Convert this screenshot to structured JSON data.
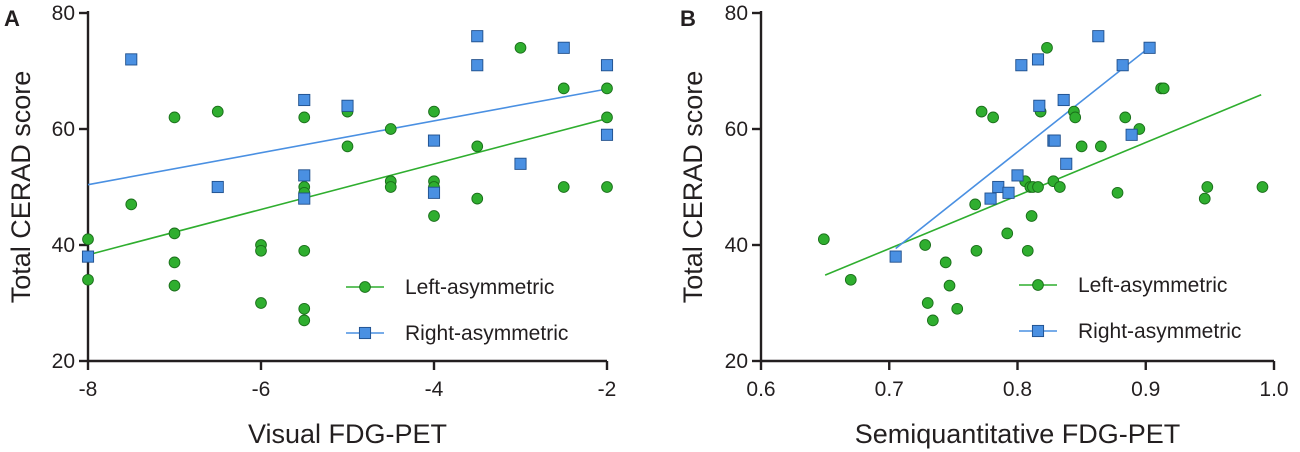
{
  "chart_data": [
    {
      "type": "scatter",
      "panel_label": "A",
      "xlabel": "Visual FDG-PET",
      "ylabel": "Total CERAD score",
      "xlim": [
        -8,
        -2
      ],
      "ylim": [
        20,
        80
      ],
      "xticks": [
        -8,
        -6,
        -4,
        -2
      ],
      "xtick_labels": [
        "-8",
        "-6",
        "-4",
        "-2"
      ],
      "yticks": [
        20,
        40,
        60,
        80
      ],
      "ytick_labels": [
        "20",
        "40",
        "60",
        "80"
      ],
      "grid": false,
      "legend_position": "bottom-right",
      "series": [
        {
          "name": "Left-asymmetric",
          "color": "#2fae2f",
          "marker": "circle",
          "points": [
            [
              -8,
              41
            ],
            [
              -8,
              34
            ],
            [
              -7.5,
              47
            ],
            [
              -7,
              62
            ],
            [
              -7,
              42
            ],
            [
              -7,
              37
            ],
            [
              -7,
              33
            ],
            [
              -6.5,
              63
            ],
            [
              -6,
              40
            ],
            [
              -6,
              39
            ],
            [
              -6,
              30
            ],
            [
              -5.5,
              62
            ],
            [
              -5.5,
              50
            ],
            [
              -5.5,
              49
            ],
            [
              -5.5,
              39
            ],
            [
              -5.5,
              29
            ],
            [
              -5.5,
              27
            ],
            [
              -5,
              63
            ],
            [
              -5,
              57
            ],
            [
              -4.5,
              60
            ],
            [
              -4.5,
              51
            ],
            [
              -4.5,
              50
            ],
            [
              -4,
              63
            ],
            [
              -4,
              51
            ],
            [
              -4,
              50
            ],
            [
              -4,
              45
            ],
            [
              -3.5,
              57
            ],
            [
              -3.5,
              48
            ],
            [
              -3,
              74
            ],
            [
              -2.5,
              67
            ],
            [
              -2.5,
              50
            ],
            [
              -2,
              67
            ],
            [
              -2,
              62
            ],
            [
              -2,
              50
            ]
          ],
          "fit_line": [
            [
              -8,
              38.3
            ],
            [
              -2,
              61.8
            ]
          ]
        },
        {
          "name": "Right-asymmetric",
          "color": "#4a90e2",
          "marker": "square",
          "points": [
            [
              -8,
              38
            ],
            [
              -7.5,
              72
            ],
            [
              -6.5,
              50
            ],
            [
              -5.5,
              65
            ],
            [
              -5.5,
              52
            ],
            [
              -5.5,
              48
            ],
            [
              -5,
              64
            ],
            [
              -4,
              58
            ],
            [
              -4,
              49
            ],
            [
              -3.5,
              76
            ],
            [
              -3.5,
              71
            ],
            [
              -3,
              54
            ],
            [
              -2.5,
              74
            ],
            [
              -2,
              71
            ],
            [
              -2,
              59
            ]
          ],
          "fit_line": [
            [
              -8,
              50.4
            ],
            [
              -2,
              66.9
            ]
          ]
        }
      ]
    },
    {
      "type": "scatter",
      "panel_label": "B",
      "xlabel": "Semiquantitative FDG-PET",
      "ylabel": "Total CERAD score",
      "xlim": [
        0.6,
        1.0
      ],
      "ylim": [
        20,
        80
      ],
      "xticks": [
        0.6,
        0.7,
        0.8,
        0.9,
        1.0
      ],
      "xtick_labels": [
        "0.6",
        "0.7",
        "0.8",
        "0.9",
        "1.0"
      ],
      "yticks": [
        20,
        40,
        60,
        80
      ],
      "ytick_labels": [
        "20",
        "40",
        "60",
        "80"
      ],
      "grid": false,
      "legend_position": "bottom-right",
      "series": [
        {
          "name": "Left-asymmetric",
          "color": "#2fae2f",
          "marker": "circle",
          "points": [
            [
              0.649,
              41
            ],
            [
              0.67,
              34
            ],
            [
              0.728,
              40
            ],
            [
              0.73,
              30
            ],
            [
              0.734,
              27
            ],
            [
              0.744,
              37
            ],
            [
              0.747,
              33
            ],
            [
              0.753,
              29
            ],
            [
              0.767,
              47
            ],
            [
              0.768,
              39
            ],
            [
              0.772,
              63
            ],
            [
              0.781,
              62
            ],
            [
              0.792,
              42
            ],
            [
              0.806,
              51
            ],
            [
              0.808,
              39
            ],
            [
              0.81,
              50
            ],
            [
              0.811,
              45
            ],
            [
              0.812,
              50
            ],
            [
              0.816,
              50
            ],
            [
              0.818,
              63
            ],
            [
              0.823,
              74
            ],
            [
              0.828,
              51
            ],
            [
              0.833,
              50
            ],
            [
              0.844,
              63
            ],
            [
              0.845,
              62
            ],
            [
              0.85,
              57
            ],
            [
              0.865,
              57
            ],
            [
              0.878,
              49
            ],
            [
              0.884,
              62
            ],
            [
              0.895,
              60
            ],
            [
              0.912,
              67
            ],
            [
              0.914,
              67
            ],
            [
              0.946,
              48
            ],
            [
              0.948,
              50
            ],
            [
              0.991,
              50
            ]
          ],
          "fit_line": [
            [
              0.65,
              34.8
            ],
            [
              0.99,
              65.9
            ]
          ]
        },
        {
          "name": "Right-asymmetric",
          "color": "#4a90e2",
          "marker": "square",
          "points": [
            [
              0.705,
              38
            ],
            [
              0.779,
              48
            ],
            [
              0.785,
              50
            ],
            [
              0.793,
              49
            ],
            [
              0.8,
              52
            ],
            [
              0.803,
              71
            ],
            [
              0.816,
              72
            ],
            [
              0.817,
              64
            ],
            [
              0.828,
              58
            ],
            [
              0.829,
              58
            ],
            [
              0.836,
              65
            ],
            [
              0.838,
              54
            ],
            [
              0.863,
              76
            ],
            [
              0.882,
              71
            ],
            [
              0.889,
              59
            ],
            [
              0.903,
              74
            ]
          ],
          "fit_line": [
            [
              0.705,
              39.4
            ],
            [
              0.903,
              74.1
            ]
          ]
        }
      ]
    }
  ]
}
